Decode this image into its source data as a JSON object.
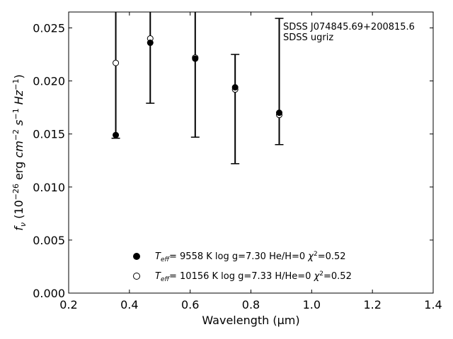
{
  "chart_data": {
    "type": "scatter",
    "xlabel": "Wavelength (μm)",
    "ylabel": "f_ν (10^−26 erg cm^−2 s^−1 Hz^−1)",
    "xlim": [
      0.2,
      1.4
    ],
    "ylim": [
      0.0,
      0.0265
    ],
    "xticks": [
      0.2,
      0.4,
      0.6,
      0.8,
      1.0,
      1.2,
      1.4
    ],
    "xtick_labels": [
      "0.2",
      "0.4",
      "0.6",
      "0.8",
      "1.0",
      "1.2",
      "1.4"
    ],
    "yticks": [
      0.0,
      0.005,
      0.01,
      0.015,
      0.02,
      0.025
    ],
    "ytick_labels": [
      "0.000",
      "0.005",
      "0.010",
      "0.015",
      "0.020",
      "0.025"
    ],
    "grid": false,
    "legend_position": "bottom-center",
    "annotation": [
      "SDSS J074845.69+200815.6",
      "SDSS ugriz"
    ],
    "observed": {
      "x": [
        0.3551,
        0.4686,
        0.6166,
        0.748,
        0.8932
      ],
      "y_err_low": [
        0.0146,
        0.0179,
        0.0147,
        0.0122,
        0.014
      ],
      "y_err_high": [
        0.0265,
        0.0265,
        0.0265,
        0.0225,
        0.0259
      ],
      "color": "#000000"
    },
    "series": [
      {
        "name": "T_eff=  9558 K  log g=7.30  He/H=0  χ²=0.52",
        "marker": "filled-circle",
        "x": [
          0.3551,
          0.4686,
          0.6166,
          0.748,
          0.8932
        ],
        "values": [
          0.0149,
          0.0236,
          0.0221,
          0.0194,
          0.017
        ]
      },
      {
        "name": "T_eff= 10156 K  log g=7.33  H/He=0  χ²=0.52",
        "marker": "open-circle",
        "x": [
          0.3551,
          0.4686,
          0.6166,
          0.748,
          0.8932
        ],
        "values": [
          0.0217,
          0.024,
          0.0222,
          0.0192,
          0.0168
        ]
      }
    ]
  }
}
